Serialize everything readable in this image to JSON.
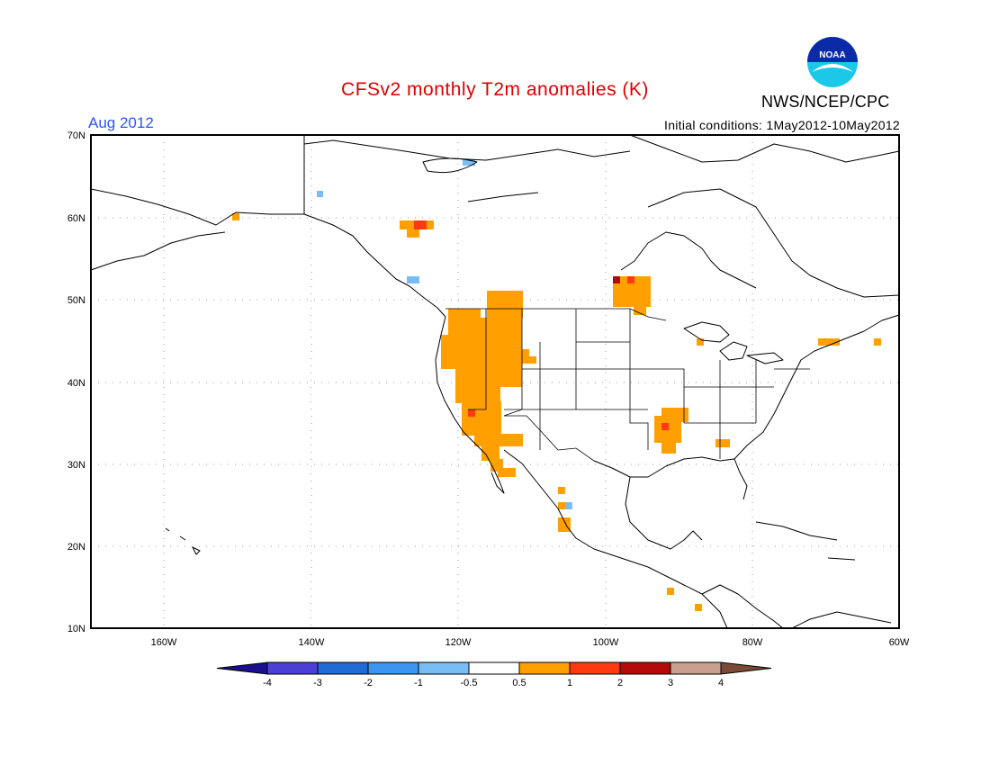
{
  "header": {
    "title": "CFSv2 monthly T2m anomalies (K)",
    "month": "Aug 2012",
    "initial_conditions": "Initial conditions: 1May2012-10May2012",
    "org": "NWS/NCEP/CPC",
    "logo_text": "NOAA"
  },
  "map": {
    "lat_labels": [
      "70N",
      "60N",
      "50N",
      "40N",
      "30N",
      "20N",
      "10N"
    ],
    "lon_labels": [
      "160W",
      "140W",
      "120W",
      "100W",
      "80W",
      "60W"
    ],
    "extent": {
      "lon": [
        -170,
        -60
      ],
      "lat": [
        10,
        70
      ]
    },
    "grid": "dotted"
  },
  "colorbar": {
    "tick_labels": [
      "-4",
      "-3",
      "-2",
      "-1",
      "-0.5",
      "0.5",
      "1",
      "2",
      "3",
      "4"
    ],
    "colors": [
      "#1a0f8c",
      "#4b3fd6",
      "#1f6ad4",
      "#3a96f0",
      "#79bdf5",
      "#ffffff",
      "#ff9f00",
      "#ff3a10",
      "#b50a0a",
      "#c9a08f",
      "#7a4a35"
    ]
  },
  "anomaly_colors": {
    "warm_0_5": "#ff9f00",
    "warm_1": "#ff3a10",
    "warm_2": "#b50a0a",
    "cool_0_5": "#79bdf5"
  }
}
